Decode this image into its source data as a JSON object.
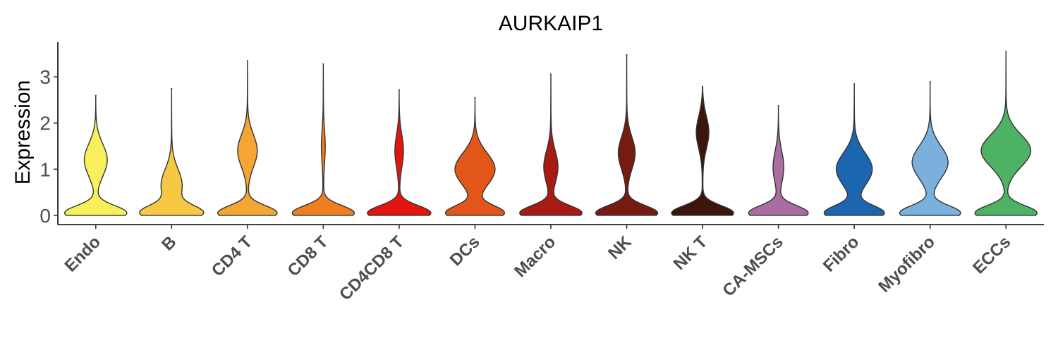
{
  "chart_data": {
    "type": "violin",
    "title": "AURKAIP1",
    "xlabel": "",
    "ylabel": "Expression",
    "ylim": [
      -0.2,
      3.75
    ],
    "yticks": [
      "0",
      "1",
      "2",
      "3"
    ],
    "grid": false,
    "legend": "none",
    "categories": [
      "Endo",
      "B",
      "CD4 T",
      "CD8 T",
      "CD4CD8 T",
      "DCs",
      "Macro",
      "NK",
      "NK T",
      "CA-MSCs",
      "Fibro",
      "Myofibro",
      "ECCs"
    ],
    "colors": [
      "#F8F05A",
      "#F7C844",
      "#F4A533",
      "#F07F22",
      "#E3150F",
      "#E35619",
      "#A71B12",
      "#771A12",
      "#3D160B",
      "#A96DA0",
      "#1C65AF",
      "#7AAFDE",
      "#4EB264"
    ],
    "max_values": [
      2.6,
      2.75,
      3.35,
      3.28,
      2.72,
      2.55,
      3.06,
      3.48,
      2.8,
      2.38,
      2.85,
      2.9,
      3.55
    ],
    "density_peaks": [
      [
        {
          "y": 0.05,
          "w": 0.9
        },
        {
          "y": 1.2,
          "w": 0.33
        }
      ],
      [
        {
          "y": 0.05,
          "w": 0.86
        },
        {
          "y": 0.65,
          "w": 0.3
        }
      ],
      [
        {
          "y": 0.05,
          "w": 0.86
        },
        {
          "y": 1.4,
          "w": 0.28
        }
      ],
      [
        {
          "y": 0.05,
          "w": 0.9
        },
        {
          "y": 1.5,
          "w": 0.05
        }
      ],
      [
        {
          "y": 0.05,
          "w": 0.92
        },
        {
          "y": 1.4,
          "w": 0.12
        }
      ],
      [
        {
          "y": 0.05,
          "w": 0.84
        },
        {
          "y": 1.0,
          "w": 0.58
        }
      ],
      [
        {
          "y": 0.05,
          "w": 0.9
        },
        {
          "y": 1.05,
          "w": 0.2
        }
      ],
      [
        {
          "y": 0.05,
          "w": 0.9
        },
        {
          "y": 1.35,
          "w": 0.24
        }
      ],
      [
        {
          "y": 0.05,
          "w": 0.9
        },
        {
          "y": 1.8,
          "w": 0.18
        }
      ],
      [
        {
          "y": 0.05,
          "w": 0.86
        },
        {
          "y": 1.05,
          "w": 0.15
        }
      ],
      [
        {
          "y": 0.05,
          "w": 0.86
        },
        {
          "y": 1.0,
          "w": 0.52
        }
      ],
      [
        {
          "y": 0.05,
          "w": 0.88
        },
        {
          "y": 1.15,
          "w": 0.52
        }
      ],
      [
        {
          "y": 0.05,
          "w": 0.9
        },
        {
          "y": 1.4,
          "w": 0.72
        }
      ]
    ]
  }
}
